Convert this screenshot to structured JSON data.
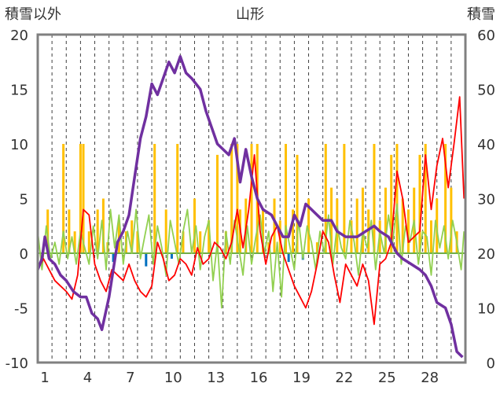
{
  "chart_data": {
    "type": "line",
    "title": "山形",
    "ylabel_left": "積雪以外",
    "ylabel_right": "積雪",
    "xticks": [
      "1",
      "4",
      "7",
      "10",
      "13",
      "16",
      "19",
      "22",
      "25",
      "28"
    ],
    "xtick_days": [
      1,
      4,
      7,
      10,
      13,
      16,
      19,
      22,
      25,
      28
    ],
    "xlim": [
      0,
      30
    ],
    "ylim_left": [
      -10,
      20
    ],
    "ylim_right": [
      0,
      60
    ],
    "yticks_left": [
      "20",
      "15",
      "10",
      "5",
      "0",
      "-5",
      "-10"
    ],
    "yticks_right": [
      "60",
      "50",
      "40",
      "30",
      "20",
      "10",
      "0"
    ],
    "grid": "vertical dashed daily",
    "colors": {
      "snow_depth": "#7030a0",
      "temperature": "#ff0000",
      "wind": "#92d050",
      "precip_positive": "#ffc000",
      "precip_negative": "#0070c0",
      "zero_line": "#70ad47",
      "frame": "#808080",
      "grid": "#404040"
    },
    "series": [
      {
        "id": "snow_depth",
        "axis": "right",
        "points": [
          [
            0,
            17
          ],
          [
            0.3,
            19
          ],
          [
            0.5,
            23
          ],
          [
            0.8,
            19
          ],
          [
            1.2,
            18
          ],
          [
            1.6,
            16
          ],
          [
            2.0,
            15
          ],
          [
            2.5,
            13
          ],
          [
            3.0,
            12
          ],
          [
            3.4,
            12
          ],
          [
            3.8,
            9
          ],
          [
            4.2,
            8
          ],
          [
            4.5,
            6
          ],
          [
            5.0,
            12
          ],
          [
            5.6,
            22
          ],
          [
            6.0,
            24
          ],
          [
            6.4,
            27
          ],
          [
            6.8,
            34
          ],
          [
            7.2,
            41
          ],
          [
            7.6,
            45
          ],
          [
            8.0,
            51
          ],
          [
            8.4,
            49
          ],
          [
            8.8,
            52
          ],
          [
            9.2,
            55
          ],
          [
            9.6,
            53
          ],
          [
            10.0,
            56
          ],
          [
            10.4,
            53
          ],
          [
            10.8,
            52
          ],
          [
            11.4,
            50
          ],
          [
            11.8,
            46
          ],
          [
            12.2,
            43
          ],
          [
            12.6,
            40
          ],
          [
            13.0,
            39
          ],
          [
            13.4,
            38
          ],
          [
            13.8,
            41
          ],
          [
            14.2,
            33
          ],
          [
            14.6,
            39
          ],
          [
            15.0,
            34
          ],
          [
            15.4,
            30
          ],
          [
            15.8,
            28
          ],
          [
            16.4,
            27
          ],
          [
            16.8,
            25
          ],
          [
            17.2,
            23
          ],
          [
            17.6,
            23
          ],
          [
            18.0,
            27
          ],
          [
            18.4,
            25
          ],
          [
            18.8,
            29
          ],
          [
            19.2,
            28
          ],
          [
            19.6,
            27
          ],
          [
            20.0,
            26
          ],
          [
            20.6,
            26
          ],
          [
            21.0,
            24
          ],
          [
            21.6,
            23
          ],
          [
            22.4,
            23
          ],
          [
            23.0,
            24
          ],
          [
            23.6,
            25
          ],
          [
            24.0,
            24
          ],
          [
            24.6,
            23
          ],
          [
            25.2,
            20
          ],
          [
            25.6,
            19
          ],
          [
            26.2,
            18
          ],
          [
            26.8,
            17
          ],
          [
            27.2,
            16
          ],
          [
            27.6,
            14
          ],
          [
            28.0,
            11
          ],
          [
            28.6,
            10
          ],
          [
            29.0,
            7
          ],
          [
            29.4,
            2
          ],
          [
            29.8,
            1
          ]
        ]
      },
      {
        "id": "temperature",
        "axis": "left",
        "points": [
          [
            0,
            -1.5
          ],
          [
            0.4,
            -0.5
          ],
          [
            0.8,
            -1.5
          ],
          [
            1.2,
            -2.5
          ],
          [
            1.6,
            -3.0
          ],
          [
            2.0,
            -3.5
          ],
          [
            2.4,
            -4.2
          ],
          [
            2.8,
            -2.0
          ],
          [
            3.2,
            4.0
          ],
          [
            3.6,
            3.5
          ],
          [
            4.0,
            -1.0
          ],
          [
            4.4,
            -2.5
          ],
          [
            4.8,
            -3.5
          ],
          [
            5.2,
            -1.5
          ],
          [
            5.6,
            -2.0
          ],
          [
            6.0,
            -2.5
          ],
          [
            6.4,
            -1.0
          ],
          [
            6.8,
            -2.5
          ],
          [
            7.2,
            -3.5
          ],
          [
            7.6,
            -4.0
          ],
          [
            8.0,
            -3.0
          ],
          [
            8.4,
            1.0
          ],
          [
            8.8,
            -0.5
          ],
          [
            9.2,
            -2.5
          ],
          [
            9.6,
            -2.0
          ],
          [
            10.0,
            -0.5
          ],
          [
            10.4,
            -1.0
          ],
          [
            10.8,
            -2.0
          ],
          [
            11.2,
            0.5
          ],
          [
            11.6,
            -1.0
          ],
          [
            12.0,
            -0.5
          ],
          [
            12.4,
            1.0
          ],
          [
            12.8,
            0.5
          ],
          [
            13.2,
            -0.5
          ],
          [
            13.6,
            1.0
          ],
          [
            14.0,
            4.0
          ],
          [
            14.4,
            0.5
          ],
          [
            14.8,
            4.0
          ],
          [
            15.2,
            9.0
          ],
          [
            15.6,
            2.0
          ],
          [
            16.0,
            -1.0
          ],
          [
            16.4,
            1.5
          ],
          [
            16.8,
            2.5
          ],
          [
            17.2,
            0.0
          ],
          [
            17.6,
            -1.5
          ],
          [
            18.0,
            -3.0
          ],
          [
            18.4,
            -4.0
          ],
          [
            18.8,
            -5.0
          ],
          [
            19.2,
            -3.5
          ],
          [
            19.6,
            -1.0
          ],
          [
            20.0,
            2.0
          ],
          [
            20.4,
            1.0
          ],
          [
            20.8,
            -2.0
          ],
          [
            21.2,
            -4.5
          ],
          [
            21.6,
            -1.0
          ],
          [
            22.0,
            -2.0
          ],
          [
            22.4,
            -3.0
          ],
          [
            22.8,
            -1.0
          ],
          [
            23.2,
            -2.5
          ],
          [
            23.6,
            -6.5
          ],
          [
            24.0,
            -1.0
          ],
          [
            24.4,
            -0.5
          ],
          [
            24.8,
            1.0
          ],
          [
            25.2,
            7.5
          ],
          [
            25.6,
            5.0
          ],
          [
            26.0,
            1.0
          ],
          [
            26.4,
            1.5
          ],
          [
            26.8,
            2.0
          ],
          [
            27.2,
            9.0
          ],
          [
            27.6,
            4.0
          ],
          [
            28.0,
            8.0
          ],
          [
            28.4,
            10.5
          ],
          [
            28.8,
            6.0
          ],
          [
            29.2,
            10.0
          ],
          [
            29.6,
            14.3
          ],
          [
            29.9,
            5.0
          ]
        ]
      },
      {
        "id": "wind",
        "axis": "left",
        "points": [
          [
            0,
            2.0
          ],
          [
            0.3,
            -1.5
          ],
          [
            0.6,
            2.5
          ],
          [
            0.9,
            -0.5
          ],
          [
            1.2,
            1.0
          ],
          [
            1.5,
            -1.0
          ],
          [
            1.8,
            2.0
          ],
          [
            2.1,
            -0.5
          ],
          [
            2.4,
            1.5
          ],
          [
            2.7,
            -1.0
          ],
          [
            3.0,
            2.0
          ],
          [
            3.3,
            0.5
          ],
          [
            3.6,
            -1.0
          ],
          [
            3.9,
            2.5
          ],
          [
            4.2,
            -0.5
          ],
          [
            4.5,
            3.0
          ],
          [
            4.8,
            -1.5
          ],
          [
            5.1,
            4.0
          ],
          [
            5.4,
            0.5
          ],
          [
            5.7,
            3.5
          ],
          [
            6.0,
            -1.0
          ],
          [
            6.3,
            2.0
          ],
          [
            6.6,
            0.0
          ],
          [
            6.9,
            4.0
          ],
          [
            7.2,
            -0.5
          ],
          [
            7.5,
            1.5
          ],
          [
            7.8,
            3.5
          ],
          [
            8.1,
            -1.0
          ],
          [
            8.4,
            2.5
          ],
          [
            8.7,
            0.5
          ],
          [
            9.0,
            -2.0
          ],
          [
            9.3,
            3.0
          ],
          [
            9.6,
            1.0
          ],
          [
            9.9,
            -1.0
          ],
          [
            10.2,
            2.0
          ],
          [
            10.5,
            4.0
          ],
          [
            10.8,
            0.0
          ],
          [
            11.1,
            2.5
          ],
          [
            11.4,
            -1.5
          ],
          [
            11.7,
            1.5
          ],
          [
            12.0,
            3.0
          ],
          [
            12.3,
            -2.5
          ],
          [
            12.6,
            1.0
          ],
          [
            12.9,
            -5.0
          ],
          [
            13.2,
            2.0
          ],
          [
            13.5,
            -1.0
          ],
          [
            13.8,
            3.0
          ],
          [
            14.1,
            0.5
          ],
          [
            14.4,
            -2.0
          ],
          [
            14.7,
            2.5
          ],
          [
            15.0,
            -1.0
          ],
          [
            15.3,
            1.5
          ],
          [
            15.6,
            3.5
          ],
          [
            15.9,
            0.0
          ],
          [
            16.2,
            2.0
          ],
          [
            16.5,
            -3.5
          ],
          [
            16.8,
            1.0
          ],
          [
            17.1,
            -4.0
          ],
          [
            17.4,
            2.5
          ],
          [
            17.7,
            0.5
          ],
          [
            18.0,
            -1.5
          ],
          [
            18.3,
            3.0
          ],
          [
            18.6,
            -0.5
          ],
          [
            18.9,
            2.5
          ],
          [
            19.2,
            1.0
          ],
          [
            19.5,
            -1.5
          ],
          [
            19.8,
            2.0
          ],
          [
            20.1,
            0.0
          ],
          [
            20.4,
            3.5
          ],
          [
            20.7,
            -1.0
          ],
          [
            21.0,
            2.5
          ],
          [
            21.3,
            0.5
          ],
          [
            21.6,
            -0.5
          ],
          [
            21.9,
            3.0
          ],
          [
            22.2,
            1.0
          ],
          [
            22.5,
            -2.0
          ],
          [
            22.8,
            2.0
          ],
          [
            23.1,
            0.5
          ],
          [
            23.4,
            3.0
          ],
          [
            23.7,
            -1.5
          ],
          [
            24.0,
            2.0
          ],
          [
            24.3,
            0.0
          ],
          [
            24.6,
            3.5
          ],
          [
            24.9,
            1.0
          ],
          [
            25.2,
            4.5
          ],
          [
            25.5,
            -1.0
          ],
          [
            25.8,
            2.5
          ],
          [
            26.1,
            1.0
          ],
          [
            26.4,
            3.0
          ],
          [
            26.7,
            -1.0
          ],
          [
            27.0,
            2.0
          ],
          [
            27.3,
            1.5
          ],
          [
            27.6,
            -2.0
          ],
          [
            27.9,
            3.0
          ],
          [
            28.2,
            0.5
          ],
          [
            28.5,
            2.5
          ],
          [
            28.8,
            -0.5
          ],
          [
            29.1,
            3.0
          ],
          [
            29.4,
            1.0
          ],
          [
            29.7,
            -1.5
          ],
          [
            29.9,
            2.0
          ]
        ]
      },
      {
        "id": "precipitation",
        "axis": "left",
        "kind": "bars",
        "points": [
          [
            0.7,
            4
          ],
          [
            1.8,
            10
          ],
          [
            2.2,
            4
          ],
          [
            2.6,
            2
          ],
          [
            3.0,
            10
          ],
          [
            3.2,
            10
          ],
          [
            3.6,
            2
          ],
          [
            4.2,
            4
          ],
          [
            4.6,
            5
          ],
          [
            4.9,
            1
          ],
          [
            5.3,
            -0.8
          ],
          [
            5.7,
            3
          ],
          [
            6.2,
            2
          ],
          [
            6.6,
            3
          ],
          [
            7.0,
            2
          ],
          [
            7.6,
            -1.2
          ],
          [
            8.2,
            10
          ],
          [
            9.0,
            4
          ],
          [
            9.4,
            -0.5
          ],
          [
            9.8,
            10
          ],
          [
            10.2,
            2
          ],
          [
            11.0,
            5
          ],
          [
            11.4,
            2
          ],
          [
            12.0,
            3
          ],
          [
            12.6,
            9
          ],
          [
            13.2,
            2
          ],
          [
            13.6,
            10
          ],
          [
            14.0,
            10
          ],
          [
            14.2,
            4
          ],
          [
            14.6,
            5
          ],
          [
            15.0,
            10
          ],
          [
            15.4,
            10
          ],
          [
            15.8,
            4
          ],
          [
            16.2,
            1
          ],
          [
            16.6,
            5
          ],
          [
            17.0,
            3
          ],
          [
            17.4,
            10
          ],
          [
            17.6,
            -0.8
          ],
          [
            17.9,
            4
          ],
          [
            18.2,
            9
          ],
          [
            18.6,
            -0.6
          ],
          [
            19.0,
            5
          ],
          [
            19.6,
            1
          ],
          [
            20.2,
            10
          ],
          [
            20.6,
            6
          ],
          [
            21.0,
            5
          ],
          [
            21.5,
            10
          ],
          [
            22.0,
            3
          ],
          [
            22.4,
            5
          ],
          [
            22.8,
            6
          ],
          [
            23.2,
            4
          ],
          [
            23.6,
            10
          ],
          [
            24.0,
            3
          ],
          [
            24.4,
            6
          ],
          [
            24.8,
            9
          ],
          [
            25.2,
            10
          ],
          [
            25.6,
            5
          ],
          [
            26.0,
            4
          ],
          [
            26.4,
            6
          ],
          [
            26.8,
            9
          ],
          [
            27.2,
            10
          ],
          [
            27.6,
            3
          ],
          [
            28.0,
            5
          ],
          [
            28.6,
            10
          ],
          [
            29.0,
            6
          ],
          [
            29.4,
            2
          ]
        ]
      }
    ]
  }
}
